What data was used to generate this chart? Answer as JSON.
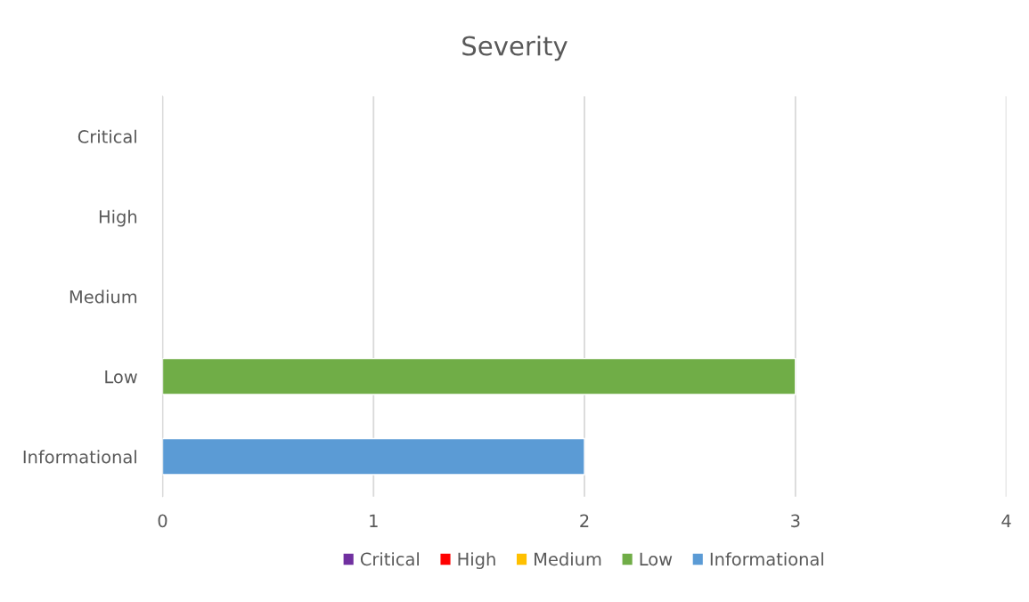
{
  "chart_data": {
    "type": "bar",
    "title": "Severity",
    "orientation": "horizontal",
    "stacked": true,
    "categories": [
      "Critical",
      "High",
      "Medium",
      "Low",
      "Informational"
    ],
    "series": [
      {
        "name": "Critical",
        "color": "#7030a0",
        "values": [
          null,
          null,
          null,
          null,
          null
        ]
      },
      {
        "name": "High",
        "color": "#ff0000",
        "values": [
          null,
          null,
          null,
          null,
          null
        ]
      },
      {
        "name": "Medium",
        "color": "#ffc000",
        "values": [
          null,
          null,
          null,
          null,
          null
        ]
      },
      {
        "name": "Low",
        "color": "#70ad47",
        "values": [
          null,
          null,
          null,
          3,
          null
        ]
      },
      {
        "name": "Informational",
        "color": "#5b9bd5",
        "values": [
          null,
          null,
          null,
          null,
          2
        ]
      }
    ],
    "xlim": [
      0,
      4
    ],
    "xticks": [
      0,
      1,
      2,
      3,
      4
    ],
    "grid": "x",
    "legend": "bottom"
  }
}
